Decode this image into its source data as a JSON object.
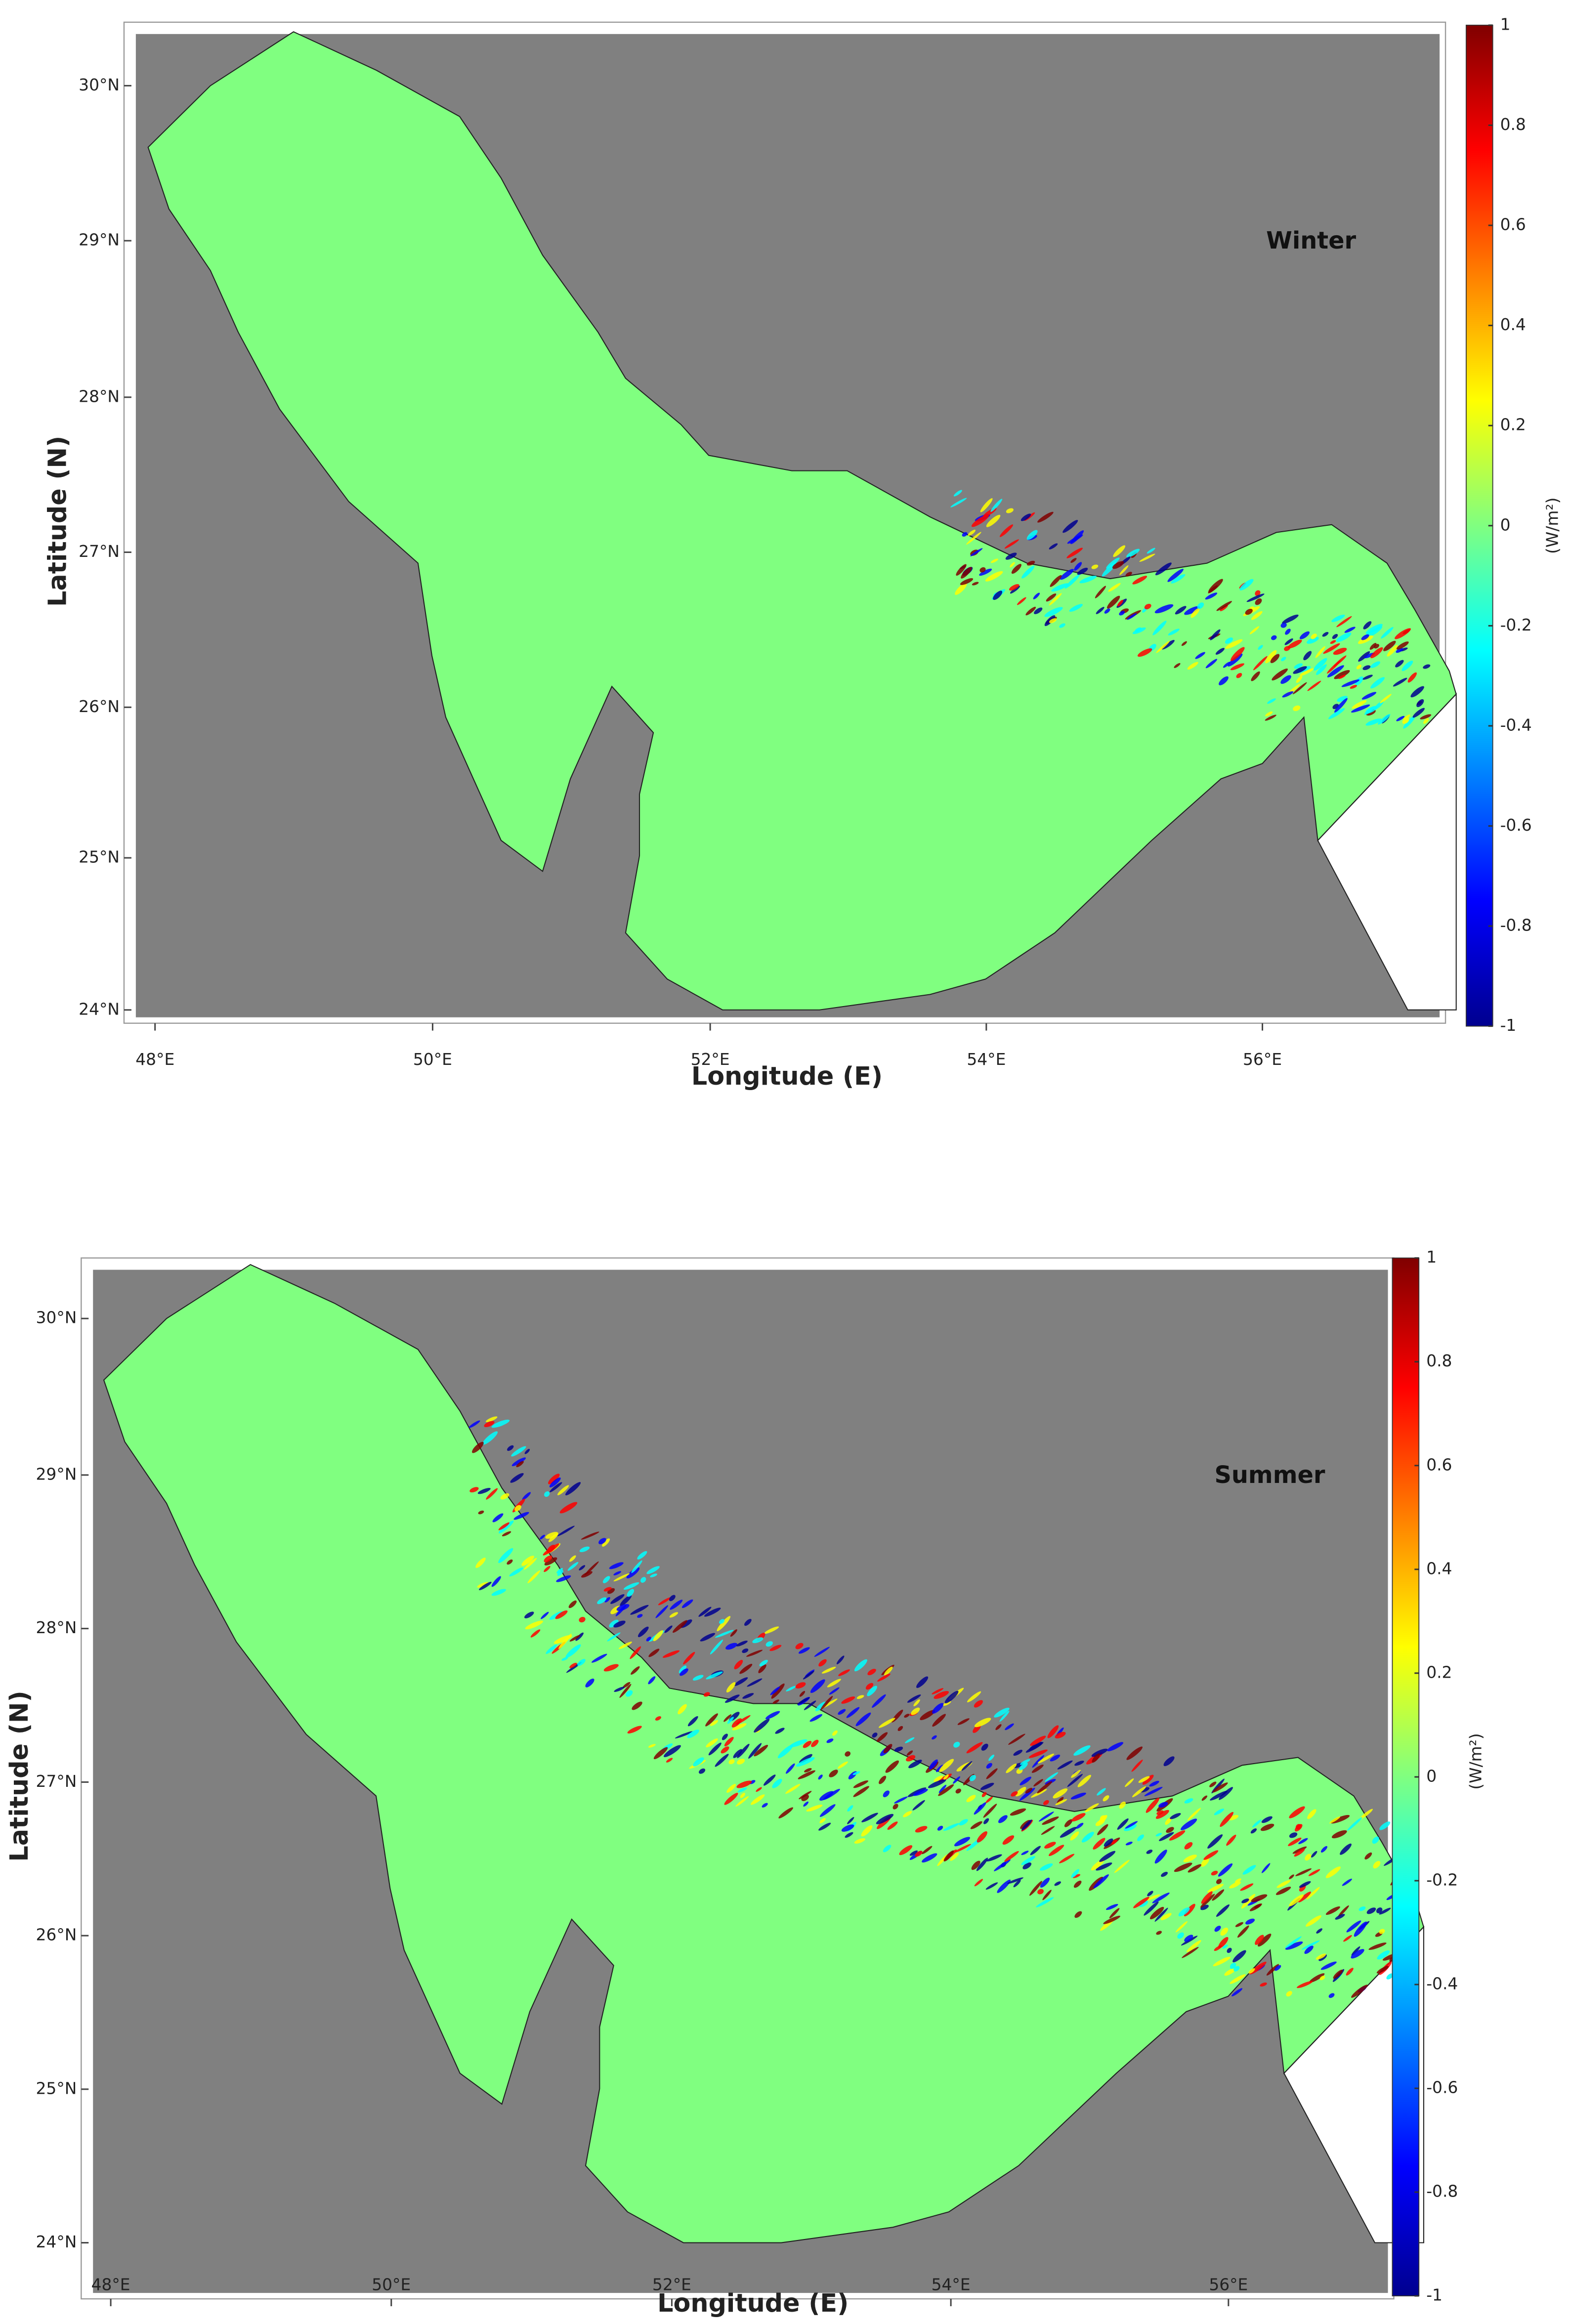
{
  "panels": [
    {
      "season": "Winter",
      "x_label": "Longitude (E)",
      "y_label": "Latitude (N)",
      "lon_ticks": [
        "48°E",
        "50°E",
        "52°E",
        "54°E",
        "56°E"
      ],
      "lat_ticks": [
        "30°N",
        "29°N",
        "28°N",
        "27°N",
        "26°N",
        "25°N",
        "24°N"
      ],
      "colorbar": {
        "label": "(W/m²)",
        "lim": [
          -1,
          1
        ],
        "ticks": [
          1,
          0.8,
          0.6,
          0.4,
          0.2,
          0,
          -0.2,
          -0.4,
          -0.6,
          -0.8,
          -1
        ]
      }
    },
    {
      "season": "Summer",
      "x_label": "Longitude (E)",
      "y_label": "Latitude (N)",
      "lon_ticks": [
        "48°E",
        "50°E",
        "52°E",
        "54°E",
        "56°E"
      ],
      "lat_ticks": [
        "30°N",
        "29°N",
        "28°N",
        "27°N",
        "26°N",
        "25°N",
        "24°N"
      ],
      "colorbar": {
        "label": "(W/m²)",
        "lim": [
          -1,
          1
        ],
        "ticks": [
          1,
          0.8,
          0.6,
          0.4,
          0.2,
          0,
          -0.2,
          -0.4,
          -0.6,
          -0.8,
          -1
        ]
      }
    }
  ]
}
